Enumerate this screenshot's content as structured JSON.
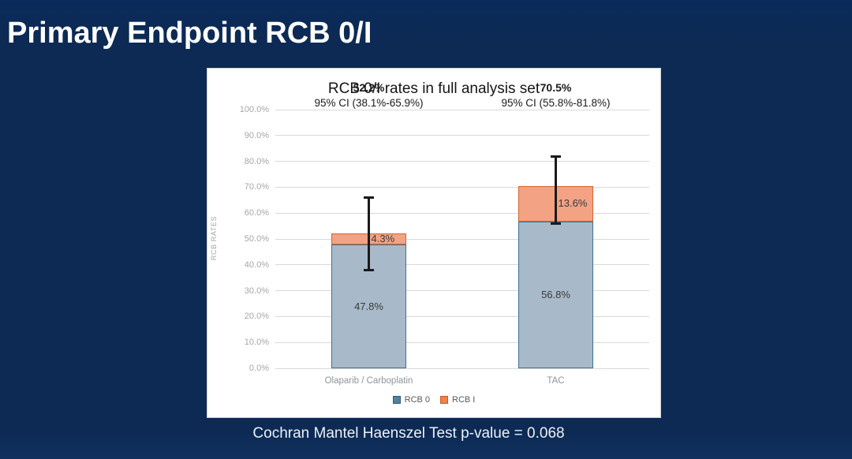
{
  "slide": {
    "title": "Primary Endpoint RCB 0/I",
    "caption": "Cochran Mantel Haenszel Test p-value = 0.068",
    "colors": {
      "background": "#0c2a54",
      "title_text": "#ffffff",
      "caption_text": "#eef1f6",
      "panel_bg": "#ffffff"
    }
  },
  "chart_data": {
    "type": "bar",
    "stacked": true,
    "title": "RCB 0/I rates in full analysis set",
    "ylabel": "RCB RATES",
    "xlabel": "",
    "categories": [
      "Olaparib / Carboplatin",
      "TAC"
    ],
    "series": [
      {
        "name": "RCB 0",
        "values": [
          47.8,
          56.8
        ],
        "labels": [
          "47.8%",
          "56.8%"
        ],
        "fill": "#a8bac9",
        "border": "#3e7191",
        "legend_fill": "#53809c",
        "legend_border": "#2f5e7d"
      },
      {
        "name": "RCB I",
        "values": [
          4.3,
          13.6
        ],
        "labels": [
          "4.3%",
          "13.6%"
        ],
        "fill": "#f3a284",
        "border": "#d2652e",
        "legend_fill": "#ef8050",
        "legend_border": "#c65a27"
      }
    ],
    "totals": [
      {
        "label": "52.2%",
        "ci": "95% CI (38.1%-65.9%)",
        "error_low": 38.1,
        "error_high": 65.9
      },
      {
        "label": "70.5%",
        "ci": "95% CI (55.8%-81.8%)",
        "error_low": 55.8,
        "error_high": 81.8
      }
    ],
    "ylim": [
      0,
      100
    ],
    "y_tick_labels": [
      "0.0%",
      "10.0%",
      "20.0%",
      "30.0%",
      "40.0%",
      "50.0%",
      "60.0%",
      "70.0%",
      "80.0%",
      "90.0%",
      "100.0%"
    ],
    "grid": true,
    "legend_position": "bottom",
    "gridline_color": "#d9d9d9",
    "error_bar_color": "#1a1a1a"
  }
}
